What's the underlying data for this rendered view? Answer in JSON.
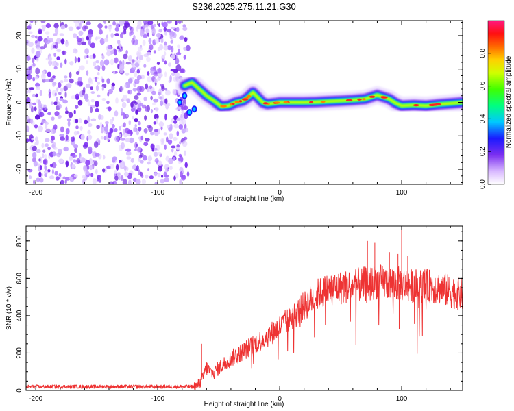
{
  "figure": {
    "title": "S236.2025.275.11.21.G30"
  },
  "chart_data": [
    {
      "type": "heatmap",
      "name": "spectrogram",
      "title": "S236.2025.275.11.21.G30",
      "xlabel": "Height of straight line (km)",
      "ylabel": "Frequency (Hz)",
      "xlim": [
        -208,
        150
      ],
      "ylim": [
        -24.5,
        24.5
      ],
      "xticks": [
        -200,
        -100,
        0,
        100
      ],
      "yticks": [
        -20,
        -10,
        0,
        10,
        20
      ],
      "colorbar": {
        "label": "Normalized spectral amplitude",
        "range": [
          0,
          1
        ],
        "ticks": [
          0.0,
          0.2,
          0.4,
          0.6,
          0.8
        ]
      },
      "noise_region_x": [
        -208,
        -75
      ],
      "signal_path": {
        "x": [
          -78,
          -72,
          -66,
          -60,
          -54,
          -48,
          -42,
          -36,
          -30,
          -26,
          -22,
          -18,
          -14,
          -10,
          -4,
          0,
          10,
          20,
          30,
          40,
          50,
          60,
          70,
          75,
          80,
          85,
          90,
          95,
          100,
          110,
          120,
          130,
          140,
          150
        ],
        "freq": [
          5,
          6,
          4,
          2,
          0.5,
          -1.2,
          -1,
          0,
          0.5,
          1.5,
          3,
          1.5,
          0,
          -0.5,
          -0.2,
          0,
          0,
          0,
          0.1,
          0.3,
          0.5,
          0.7,
          1,
          1.6,
          2.2,
          1.6,
          1,
          -0.2,
          -1,
          -0.8,
          -1,
          -0.6,
          -0.3,
          0
        ]
      }
    },
    {
      "type": "line",
      "name": "snr",
      "xlabel": "Height of straight line (km)",
      "ylabel": "SNR (10 * v/v)",
      "xlim": [
        -208,
        150
      ],
      "ylim": [
        0,
        880
      ],
      "xticks": [
        -200,
        -100,
        0,
        100
      ],
      "yticks": [
        0,
        200,
        400,
        600,
        800
      ],
      "color": "#ee3333",
      "trend": {
        "x": [
          -208,
          -70,
          -65,
          -60,
          -55,
          -50,
          -40,
          -30,
          -20,
          -10,
          0,
          10,
          20,
          30,
          40,
          50,
          60,
          70,
          80,
          90,
          100,
          110,
          120,
          130,
          140,
          150
        ],
        "y": [
          20,
          20,
          40,
          120,
          90,
          120,
          170,
          210,
          250,
          290,
          340,
          390,
          450,
          510,
          540,
          550,
          560,
          570,
          580,
          580,
          570,
          560,
          560,
          550,
          530,
          510
        ]
      },
      "peaks": [
        {
          "x": 100,
          "y": 870
        },
        {
          "x": 72,
          "y": 800
        },
        {
          "x": 78,
          "y": 790
        },
        {
          "x": 90,
          "y": 740
        },
        {
          "x": 97,
          "y": 730
        },
        {
          "x": 105,
          "y": 720
        },
        {
          "x": -64,
          "y": 250
        },
        {
          "x": 98,
          "y": 330
        }
      ]
    }
  ],
  "colors": {
    "line": "#ee3333",
    "noise": "#8a3ff0",
    "axis": "#000000"
  }
}
